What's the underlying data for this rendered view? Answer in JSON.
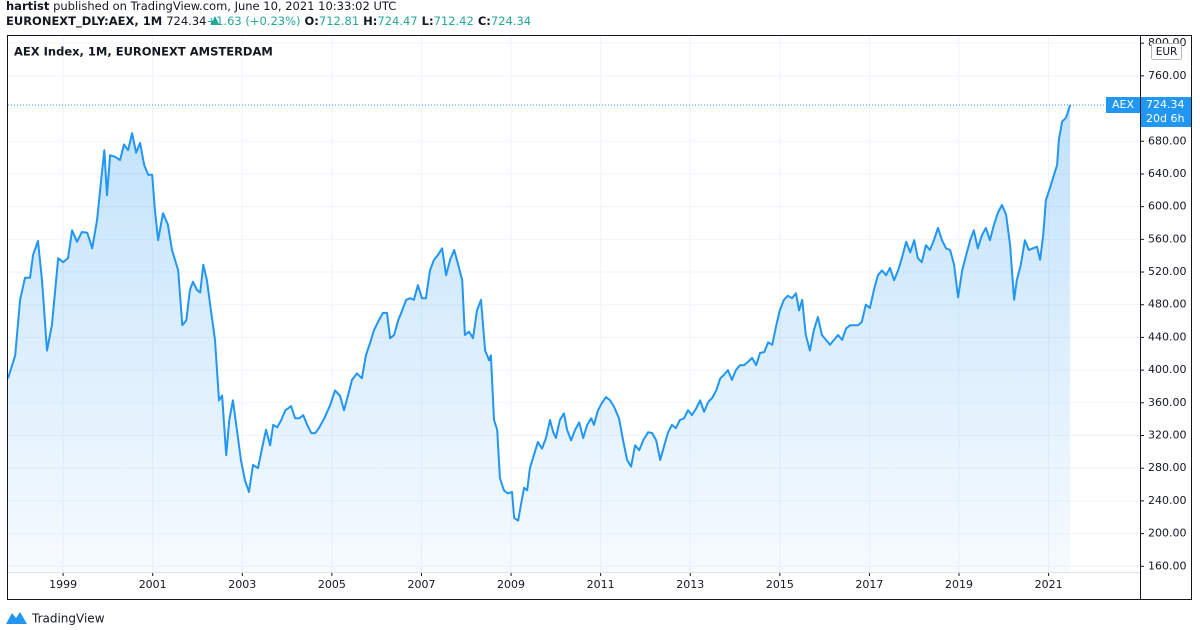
{
  "header": {
    "author": "hartist",
    "published": "published on TradingView.com, June 10, 2021 10:33:02 UTC",
    "symbol": "EURONEXT_DLY:AEX, 1M",
    "last": "724.34",
    "change": "+1.63 (+0.23%)",
    "ohlc": [
      {
        "label": "O:",
        "value": "712.81"
      },
      {
        "label": "H:",
        "value": "724.47"
      },
      {
        "label": "L:",
        "value": "712.42"
      },
      {
        "label": "C:",
        "value": "724.34"
      }
    ]
  },
  "chart_data": {
    "type": "area",
    "title": "AEX Index, 1M, EURONEXT AMSTERDAM",
    "unit": "EUR",
    "x": [
      1997.77,
      1997.93,
      1998.04,
      1998.15,
      1998.26,
      1998.33,
      1998.44,
      1998.53,
      1998.64,
      1998.75,
      1998.89,
      1999.0,
      1999.11,
      1999.2,
      1999.31,
      1999.42,
      1999.54,
      1999.65,
      1999.76,
      1999.85,
      1999.92,
      1999.98,
      2000.05,
      2000.16,
      2000.27,
      2000.36,
      2000.45,
      2000.54,
      2000.63,
      2000.72,
      2000.81,
      2000.9,
      2000.99,
      2001.05,
      2001.12,
      2001.23,
      2001.34,
      2001.43,
      2001.57,
      2001.66,
      2001.75,
      2001.83,
      2001.9,
      2001.99,
      2002.06,
      2002.13,
      2002.21,
      2002.3,
      2002.39,
      2002.48,
      2002.55,
      2002.64,
      2002.71,
      2002.79,
      2002.88,
      2002.97,
      2003.06,
      2003.15,
      2003.24,
      2003.35,
      2003.44,
      2003.53,
      2003.62,
      2003.69,
      2003.78,
      2003.87,
      2003.96,
      2004.02,
      2004.09,
      2004.18,
      2004.27,
      2004.36,
      2004.45,
      2004.54,
      2004.63,
      2004.71,
      2004.83,
      2004.96,
      2005.07,
      2005.18,
      2005.27,
      2005.36,
      2005.45,
      2005.56,
      2005.67,
      2005.76,
      2005.85,
      2005.94,
      2006.03,
      2006.14,
      2006.23,
      2006.3,
      2006.39,
      2006.48,
      2006.57,
      2006.66,
      2006.75,
      2006.83,
      2006.92,
      2007.01,
      2007.1,
      2007.19,
      2007.28,
      2007.37,
      2007.46,
      2007.55,
      2007.64,
      2007.73,
      2007.82,
      2007.91,
      2007.97,
      2008.06,
      2008.15,
      2008.24,
      2008.33,
      2008.42,
      2008.51,
      2008.55,
      2008.62,
      2008.69,
      2008.75,
      2008.84,
      2008.93,
      2009.02,
      2009.07,
      2009.16,
      2009.22,
      2009.29,
      2009.36,
      2009.42,
      2009.51,
      2009.6,
      2009.69,
      2009.78,
      2009.87,
      2009.94,
      2010.0,
      2010.09,
      2010.18,
      2010.25,
      2010.34,
      2010.43,
      2010.52,
      2010.61,
      2010.7,
      2010.79,
      2010.85,
      2010.94,
      2011.03,
      2011.12,
      2011.21,
      2011.3,
      2011.41,
      2011.5,
      2011.59,
      2011.68,
      2011.77,
      2011.86,
      2011.95,
      2012.06,
      2012.15,
      2012.24,
      2012.33,
      2012.42,
      2012.5,
      2012.59,
      2012.68,
      2012.77,
      2012.86,
      2012.95,
      2013.04,
      2013.13,
      2013.22,
      2013.31,
      2013.4,
      2013.49,
      2013.58,
      2013.67,
      2013.75,
      2013.84,
      2013.93,
      2014.02,
      2014.11,
      2014.2,
      2014.29,
      2014.38,
      2014.47,
      2014.56,
      2014.65,
      2014.74,
      2014.83,
      2014.92,
      2015.0,
      2015.09,
      2015.18,
      2015.27,
      2015.36,
      2015.43,
      2015.5,
      2015.58,
      2015.67,
      2015.76,
      2015.85,
      2015.94,
      2016.03,
      2016.12,
      2016.21,
      2016.3,
      2016.39,
      2016.48,
      2016.57,
      2016.66,
      2016.75,
      2016.83,
      2016.92,
      2017.01,
      2017.1,
      2017.19,
      2017.28,
      2017.37,
      2017.46,
      2017.55,
      2017.64,
      2017.73,
      2017.82,
      2017.91,
      2018.0,
      2018.08,
      2018.17,
      2018.26,
      2018.35,
      2018.44,
      2018.53,
      2018.62,
      2018.71,
      2018.8,
      2018.89,
      2018.98,
      2019.07,
      2019.16,
      2019.25,
      2019.33,
      2019.42,
      2019.51,
      2019.6,
      2019.69,
      2019.78,
      2019.87,
      2019.96,
      2020.05,
      2020.14,
      2020.23,
      2020.29,
      2020.38,
      2020.47,
      2020.56,
      2020.65,
      2020.74,
      2020.81,
      2020.88,
      2020.94,
      2021.03,
      2021.12,
      2021.19,
      2021.23,
      2021.3,
      2021.39,
      2021.48
    ],
    "series": [
      {
        "name": "AEX",
        "color": "#2196f3",
        "values": [
          390,
          418,
          486,
          513,
          513,
          541,
          558,
          510,
          424,
          455,
          537,
          532,
          537,
          571,
          557,
          569,
          568,
          549,
          584,
          633,
          669,
          614,
          663,
          661,
          657,
          676,
          669,
          690,
          666,
          678,
          651,
          639,
          639,
          596,
          559,
          592,
          578,
          547,
          522,
          455,
          461,
          498,
          508,
          498,
          495,
          529,
          510,
          473,
          437,
          363,
          369,
          296,
          339,
          363,
          327,
          290,
          265,
          251,
          284,
          280,
          304,
          327,
          308,
          333,
          330,
          339,
          351,
          353,
          356,
          341,
          341,
          345,
          333,
          323,
          323,
          329,
          341,
          357,
          375,
          369,
          351,
          369,
          388,
          396,
          390,
          418,
          433,
          449,
          459,
          470,
          470,
          439,
          443,
          461,
          473,
          486,
          488,
          486,
          504,
          488,
          488,
          522,
          535,
          541,
          549,
          516,
          535,
          547,
          529,
          510,
          443,
          447,
          439,
          473,
          486,
          424,
          412,
          418,
          339,
          327,
          268,
          253,
          249,
          251,
          219,
          216,
          235,
          256,
          253,
          280,
          296,
          312,
          304,
          317,
          339,
          324,
          317,
          339,
          347,
          327,
          314,
          327,
          336,
          317,
          333,
          341,
          333,
          351,
          360,
          367,
          363,
          355,
          341,
          314,
          290,
          282,
          308,
          302,
          314,
          324,
          323,
          314,
          290,
          308,
          323,
          333,
          329,
          339,
          341,
          351,
          345,
          353,
          363,
          349,
          361,
          366,
          375,
          390,
          394,
          400,
          388,
          400,
          406,
          406,
          410,
          415,
          406,
          421,
          422,
          434,
          431,
          455,
          473,
          486,
          491,
          488,
          494,
          473,
          486,
          443,
          424,
          449,
          465,
          443,
          437,
          431,
          437,
          443,
          437,
          451,
          455,
          455,
          455,
          459,
          480,
          476,
          498,
          516,
          522,
          516,
          525,
          510,
          522,
          538,
          557,
          544,
          559,
          537,
          532,
          553,
          547,
          559,
          574,
          559,
          549,
          547,
          529,
          489,
          522,
          541,
          559,
          571,
          549,
          565,
          574,
          559,
          578,
          593,
          602,
          590,
          553,
          486,
          510,
          529,
          559,
          547,
          549,
          551,
          535,
          565,
          608,
          623,
          639,
          651,
          682,
          704,
          709,
          724.34
        ]
      }
    ],
    "last_price_label": "724.34",
    "countdown": "20d 6h",
    "xlim": [
      1997.77,
      2023.04
    ],
    "xticks": [
      1999,
      2001,
      2003,
      2005,
      2007,
      2009,
      2011,
      2013,
      2015,
      2017,
      2019,
      2021
    ],
    "ylim": [
      153,
      810
    ],
    "yticks": [
      {
        "value": 160,
        "label": "160.00"
      },
      {
        "value": 200,
        "label": "200.00"
      },
      {
        "value": 240,
        "label": "240.00"
      },
      {
        "value": 280,
        "label": "280.00"
      },
      {
        "value": 320,
        "label": "320.00"
      },
      {
        "value": 360,
        "label": "360.00"
      },
      {
        "value": 400,
        "label": "400.00"
      },
      {
        "value": 440,
        "label": "440.00"
      },
      {
        "value": 480,
        "label": "480.00"
      },
      {
        "value": 520,
        "label": "520.00"
      },
      {
        "value": 560,
        "label": "560.00"
      },
      {
        "value": 600,
        "label": "600.00"
      },
      {
        "value": 640,
        "label": "640.00"
      },
      {
        "value": 680,
        "label": "680.00"
      },
      {
        "value": 720,
        "label": "720.00"
      },
      {
        "value": 760,
        "label": "760.00"
      },
      {
        "value": 800,
        "label": "800.00"
      }
    ],
    "grid": true
  },
  "footer": {
    "brand": "TradingView"
  }
}
